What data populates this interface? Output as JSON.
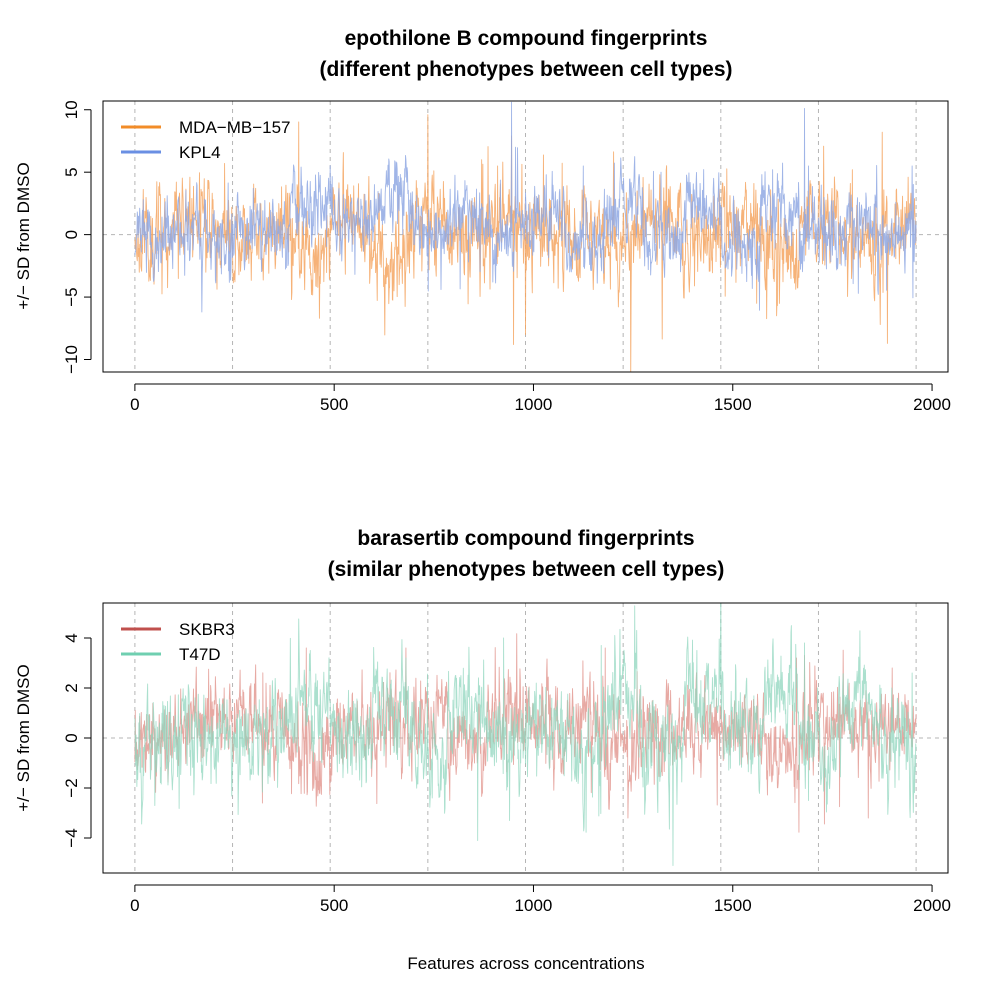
{
  "figure": {
    "shared_xlabel": "Features across concentrations"
  },
  "chart_data": [
    {
      "type": "line",
      "title": "epothilone B compound fingerprints",
      "subtitle": "(different phenotypes between cell types)",
      "xlabel": "",
      "ylabel": "+/− SD from DMSO",
      "xlim": [
        -80,
        2040
      ],
      "ylim": [
        -11,
        10.7
      ],
      "xticks": [
        "0",
        "500",
        "1000",
        "1500",
        "2000"
      ],
      "yticks": [
        "−10",
        "−5",
        "0",
        "5",
        "10"
      ],
      "xtick_values": [
        0,
        500,
        1000,
        1500,
        2000
      ],
      "ytick_values": [
        -10,
        -5,
        0,
        5,
        10
      ],
      "vlines": [
        0,
        245,
        490,
        735,
        980,
        1225,
        1470,
        1715,
        1960
      ],
      "hline": 0,
      "n_points": 1961,
      "legend_position": "top-left",
      "series": [
        {
          "name": "MDA−MB−157",
          "color": "#F4A460",
          "legend_color": "#F28C28",
          "opacity": 0.85,
          "amplitude": 1.5,
          "seed": 11,
          "blocks": [
            0,
            1.6,
            -0.5,
            0.3,
            -1.2,
            1.5,
            -1.5,
            1.2,
            -0.3,
            1.8,
            -0.3,
            0.4,
            -1.0,
            1.2,
            -0.6,
            1.4,
            -1.2,
            1.5,
            -0.8,
            1.0
          ],
          "spikes": [
            [
              225,
              5.7
            ],
            [
              735,
              9.6
            ],
            [
              870,
              6.0
            ],
            [
              910,
              5.5
            ],
            [
              945,
              7.9
            ],
            [
              950,
              -8.8
            ],
            [
              980,
              -8.0
            ],
            [
              1260,
              3.5
            ],
            [
              1560,
              -5.5
            ],
            [
              1610,
              -6.5
            ],
            [
              1800,
              5.2
            ],
            [
              1870,
              -7.2
            ],
            [
              1875,
              8.2
            ],
            [
              1940,
              4.6
            ]
          ]
        },
        {
          "name": "KPL4",
          "color": "#8FA8E3",
          "legend_color": "#6A8FE3",
          "opacity": 0.85,
          "amplitude": 1.2,
          "seed": 23,
          "blocks": [
            -0.3,
            0.5,
            -0.3,
            1.0,
            2.2,
            0.6,
            2.6,
            0.2,
            1.5,
            -0.5,
            0.9,
            -1.2,
            2.4,
            -0.4,
            1.6,
            -0.8,
            2.0,
            -0.5,
            1.4,
            -0.3
          ],
          "spikes": [
            [
              945,
              10.6
            ],
            [
              955,
              7.0
            ],
            [
              1125,
              5.5
            ],
            [
              1320,
              5.0
            ],
            [
              1600,
              5.2
            ],
            [
              1680,
              10.1
            ],
            [
              1690,
              5.5
            ],
            [
              1950,
              5.5
            ]
          ]
        }
      ]
    },
    {
      "type": "line",
      "title": "barasertib compound fingerprints",
      "subtitle": "(similar phenotypes between cell types)",
      "xlabel": "",
      "ylabel": "+/− SD from DMSO",
      "xlim": [
        -80,
        2040
      ],
      "ylim": [
        -5.4,
        5.4
      ],
      "xticks": [
        "0",
        "500",
        "1000",
        "1500",
        "2000"
      ],
      "yticks": [
        "−4",
        "−2",
        "0",
        "2",
        "4"
      ],
      "xtick_values": [
        0,
        500,
        1000,
        1500,
        2000
      ],
      "ytick_values": [
        -4,
        -2,
        0,
        2,
        4
      ],
      "vlines": [
        0,
        245,
        490,
        735,
        980,
        1225,
        1470,
        1715,
        1960
      ],
      "hline": 0,
      "n_points": 1961,
      "legend_position": "top-left",
      "series": [
        {
          "name": "SKBR3",
          "color": "#E39A93",
          "legend_color": "#C0504D",
          "opacity": 0.85,
          "amplitude": 0.7,
          "seed": 37,
          "blocks": [
            -0.2,
            0.4,
            0.9,
            0.5,
            -0.8,
            0.3,
            0.6,
            0.8,
            -0.3,
            0.5,
            0.4,
            0.6,
            -0.5,
            0.3,
            0.5,
            0.4,
            -0.6,
            0.4,
            0.2,
            0.3
          ],
          "spikes": [
            [
              190,
              2.1
            ],
            [
              320,
              -2.6
            ],
            [
              430,
              3.6
            ],
            [
              680,
              3.6
            ],
            [
              790,
              -2.5
            ],
            [
              1060,
              2.0
            ],
            [
              1180,
              3.6
            ],
            [
              1430,
              2.5
            ],
            [
              1660,
              3.2
            ],
            [
              1680,
              3.3
            ],
            [
              1840,
              -3.2
            ],
            [
              1900,
              2.8
            ]
          ]
        },
        {
          "name": "T47D",
          "color": "#8FD6BE",
          "legend_color": "#6FCFB0",
          "opacity": 0.75,
          "amplitude": 0.8,
          "seed": 51,
          "blocks": [
            -0.3,
            0.2,
            -0.2,
            0.4,
            1.4,
            0.2,
            1.5,
            -0.3,
            1.3,
            0.0,
            0.2,
            -0.2,
            1.6,
            -0.3,
            1.5,
            0.0,
            1.5,
            -0.2,
            1.2,
            0.1
          ],
          "spikes": [
            [
              50,
              -2.7
            ],
            [
              440,
              3.5
            ],
            [
              680,
              3.2
            ],
            [
              860,
              -4.1
            ],
            [
              925,
              4.0
            ],
            [
              940,
              -3.3
            ],
            [
              1170,
              3.7
            ],
            [
              1350,
              -5.1
            ],
            [
              1410,
              3.5
            ],
            [
              1680,
              3.8
            ],
            [
              1690,
              -2.5
            ],
            [
              1950,
              2.6
            ]
          ]
        }
      ]
    }
  ]
}
